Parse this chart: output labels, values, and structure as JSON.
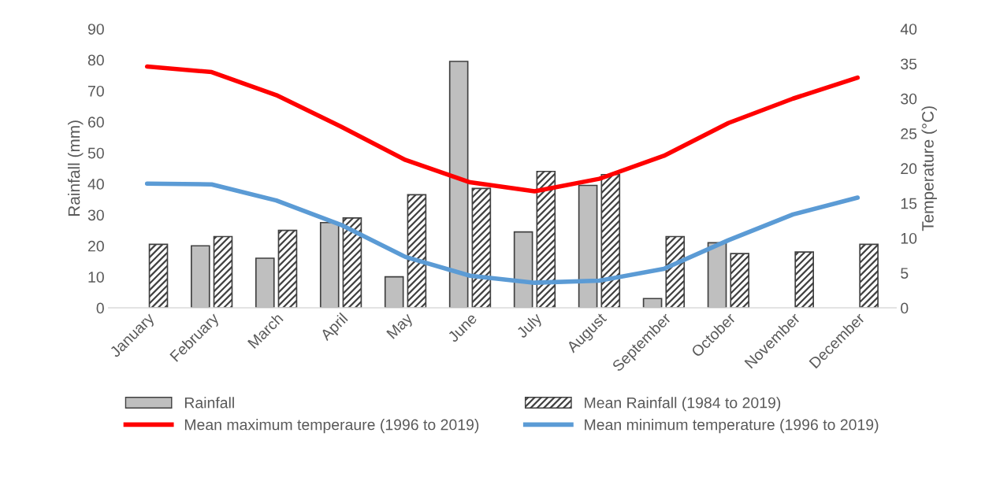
{
  "chart_data": {
    "type": "bar",
    "ylabel": "Rainfall (mm)",
    "y2label": "Temperature (°C)",
    "categories": [
      "January",
      "February",
      "March",
      "April",
      "May",
      "June",
      "July",
      "August",
      "September",
      "October",
      "November",
      "December"
    ],
    "series": [
      {
        "name": "Rainfall",
        "color": "#bfbfbf",
        "values": [
          null,
          20,
          16,
          27.5,
          10,
          79.5,
          24.5,
          39.5,
          3,
          21,
          null,
          null
        ]
      },
      {
        "name": "Mean Rainfall (1984 to 2019)",
        "color": "#404040",
        "values": [
          20.5,
          23,
          25,
          29,
          36.5,
          38.5,
          44,
          43,
          23,
          17.5,
          18,
          20.5
        ]
      },
      {
        "name": "Mean maximum temperaure (1996 to 2019)",
        "type": "line",
        "axis": "y2",
        "color": "#ff0000",
        "values": [
          34.6,
          33.8,
          30.5,
          26,
          21.2,
          18,
          16.7,
          18.5,
          21.8,
          26.5,
          30,
          33
        ]
      },
      {
        "name": "Mean minimum temperature (1996 to 2019)",
        "type": "line",
        "axis": "y2",
        "color": "#5b9bd5",
        "values": [
          17.8,
          17.7,
          15.4,
          11.9,
          7.3,
          4.6,
          3.6,
          3.9,
          5.6,
          9.7,
          13.4,
          15.8
        ]
      }
    ],
    "ylim": [
      0,
      90
    ],
    "yticks": [
      0,
      10,
      20,
      30,
      40,
      50,
      60,
      70,
      80,
      90
    ],
    "y2lim": [
      0,
      40
    ],
    "y2ticks": [
      0,
      5,
      10,
      15,
      20,
      25,
      30,
      35,
      40
    ],
    "grid": false,
    "legend": "bottom",
    "marker": "none"
  }
}
